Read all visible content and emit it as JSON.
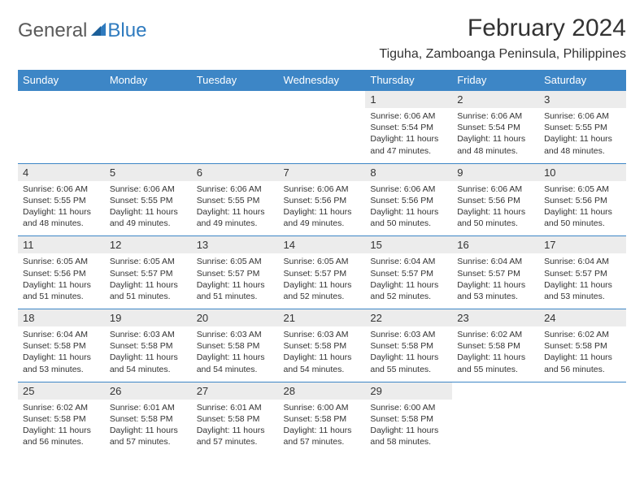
{
  "logo": {
    "general": "General",
    "blue": "Blue"
  },
  "title": "February 2024",
  "location": "Tiguha, Zamboanga Peninsula, Philippines",
  "colors": {
    "header_bg": "#3d86c6",
    "header_text": "#ffffff",
    "daynum_bg": "#ececec",
    "rule": "#3d86c6",
    "text": "#333333",
    "logo_gray": "#5a5a5a",
    "logo_blue": "#2f7bbf"
  },
  "day_headers": [
    "Sunday",
    "Monday",
    "Tuesday",
    "Wednesday",
    "Thursday",
    "Friday",
    "Saturday"
  ],
  "weeks": [
    [
      null,
      null,
      null,
      null,
      {
        "n": "1",
        "sr": "6:06 AM",
        "ss": "5:54 PM",
        "dl": "11 hours and 47 minutes."
      },
      {
        "n": "2",
        "sr": "6:06 AM",
        "ss": "5:54 PM",
        "dl": "11 hours and 48 minutes."
      },
      {
        "n": "3",
        "sr": "6:06 AM",
        "ss": "5:55 PM",
        "dl": "11 hours and 48 minutes."
      }
    ],
    [
      {
        "n": "4",
        "sr": "6:06 AM",
        "ss": "5:55 PM",
        "dl": "11 hours and 48 minutes."
      },
      {
        "n": "5",
        "sr": "6:06 AM",
        "ss": "5:55 PM",
        "dl": "11 hours and 49 minutes."
      },
      {
        "n": "6",
        "sr": "6:06 AM",
        "ss": "5:55 PM",
        "dl": "11 hours and 49 minutes."
      },
      {
        "n": "7",
        "sr": "6:06 AM",
        "ss": "5:56 PM",
        "dl": "11 hours and 49 minutes."
      },
      {
        "n": "8",
        "sr": "6:06 AM",
        "ss": "5:56 PM",
        "dl": "11 hours and 50 minutes."
      },
      {
        "n": "9",
        "sr": "6:06 AM",
        "ss": "5:56 PM",
        "dl": "11 hours and 50 minutes."
      },
      {
        "n": "10",
        "sr": "6:05 AM",
        "ss": "5:56 PM",
        "dl": "11 hours and 50 minutes."
      }
    ],
    [
      {
        "n": "11",
        "sr": "6:05 AM",
        "ss": "5:56 PM",
        "dl": "11 hours and 51 minutes."
      },
      {
        "n": "12",
        "sr": "6:05 AM",
        "ss": "5:57 PM",
        "dl": "11 hours and 51 minutes."
      },
      {
        "n": "13",
        "sr": "6:05 AM",
        "ss": "5:57 PM",
        "dl": "11 hours and 51 minutes."
      },
      {
        "n": "14",
        "sr": "6:05 AM",
        "ss": "5:57 PM",
        "dl": "11 hours and 52 minutes."
      },
      {
        "n": "15",
        "sr": "6:04 AM",
        "ss": "5:57 PM",
        "dl": "11 hours and 52 minutes."
      },
      {
        "n": "16",
        "sr": "6:04 AM",
        "ss": "5:57 PM",
        "dl": "11 hours and 53 minutes."
      },
      {
        "n": "17",
        "sr": "6:04 AM",
        "ss": "5:57 PM",
        "dl": "11 hours and 53 minutes."
      }
    ],
    [
      {
        "n": "18",
        "sr": "6:04 AM",
        "ss": "5:58 PM",
        "dl": "11 hours and 53 minutes."
      },
      {
        "n": "19",
        "sr": "6:03 AM",
        "ss": "5:58 PM",
        "dl": "11 hours and 54 minutes."
      },
      {
        "n": "20",
        "sr": "6:03 AM",
        "ss": "5:58 PM",
        "dl": "11 hours and 54 minutes."
      },
      {
        "n": "21",
        "sr": "6:03 AM",
        "ss": "5:58 PM",
        "dl": "11 hours and 54 minutes."
      },
      {
        "n": "22",
        "sr": "6:03 AM",
        "ss": "5:58 PM",
        "dl": "11 hours and 55 minutes."
      },
      {
        "n": "23",
        "sr": "6:02 AM",
        "ss": "5:58 PM",
        "dl": "11 hours and 55 minutes."
      },
      {
        "n": "24",
        "sr": "6:02 AM",
        "ss": "5:58 PM",
        "dl": "11 hours and 56 minutes."
      }
    ],
    [
      {
        "n": "25",
        "sr": "6:02 AM",
        "ss": "5:58 PM",
        "dl": "11 hours and 56 minutes."
      },
      {
        "n": "26",
        "sr": "6:01 AM",
        "ss": "5:58 PM",
        "dl": "11 hours and 57 minutes."
      },
      {
        "n": "27",
        "sr": "6:01 AM",
        "ss": "5:58 PM",
        "dl": "11 hours and 57 minutes."
      },
      {
        "n": "28",
        "sr": "6:00 AM",
        "ss": "5:58 PM",
        "dl": "11 hours and 57 minutes."
      },
      {
        "n": "29",
        "sr": "6:00 AM",
        "ss": "5:58 PM",
        "dl": "11 hours and 58 minutes."
      },
      null,
      null
    ]
  ]
}
